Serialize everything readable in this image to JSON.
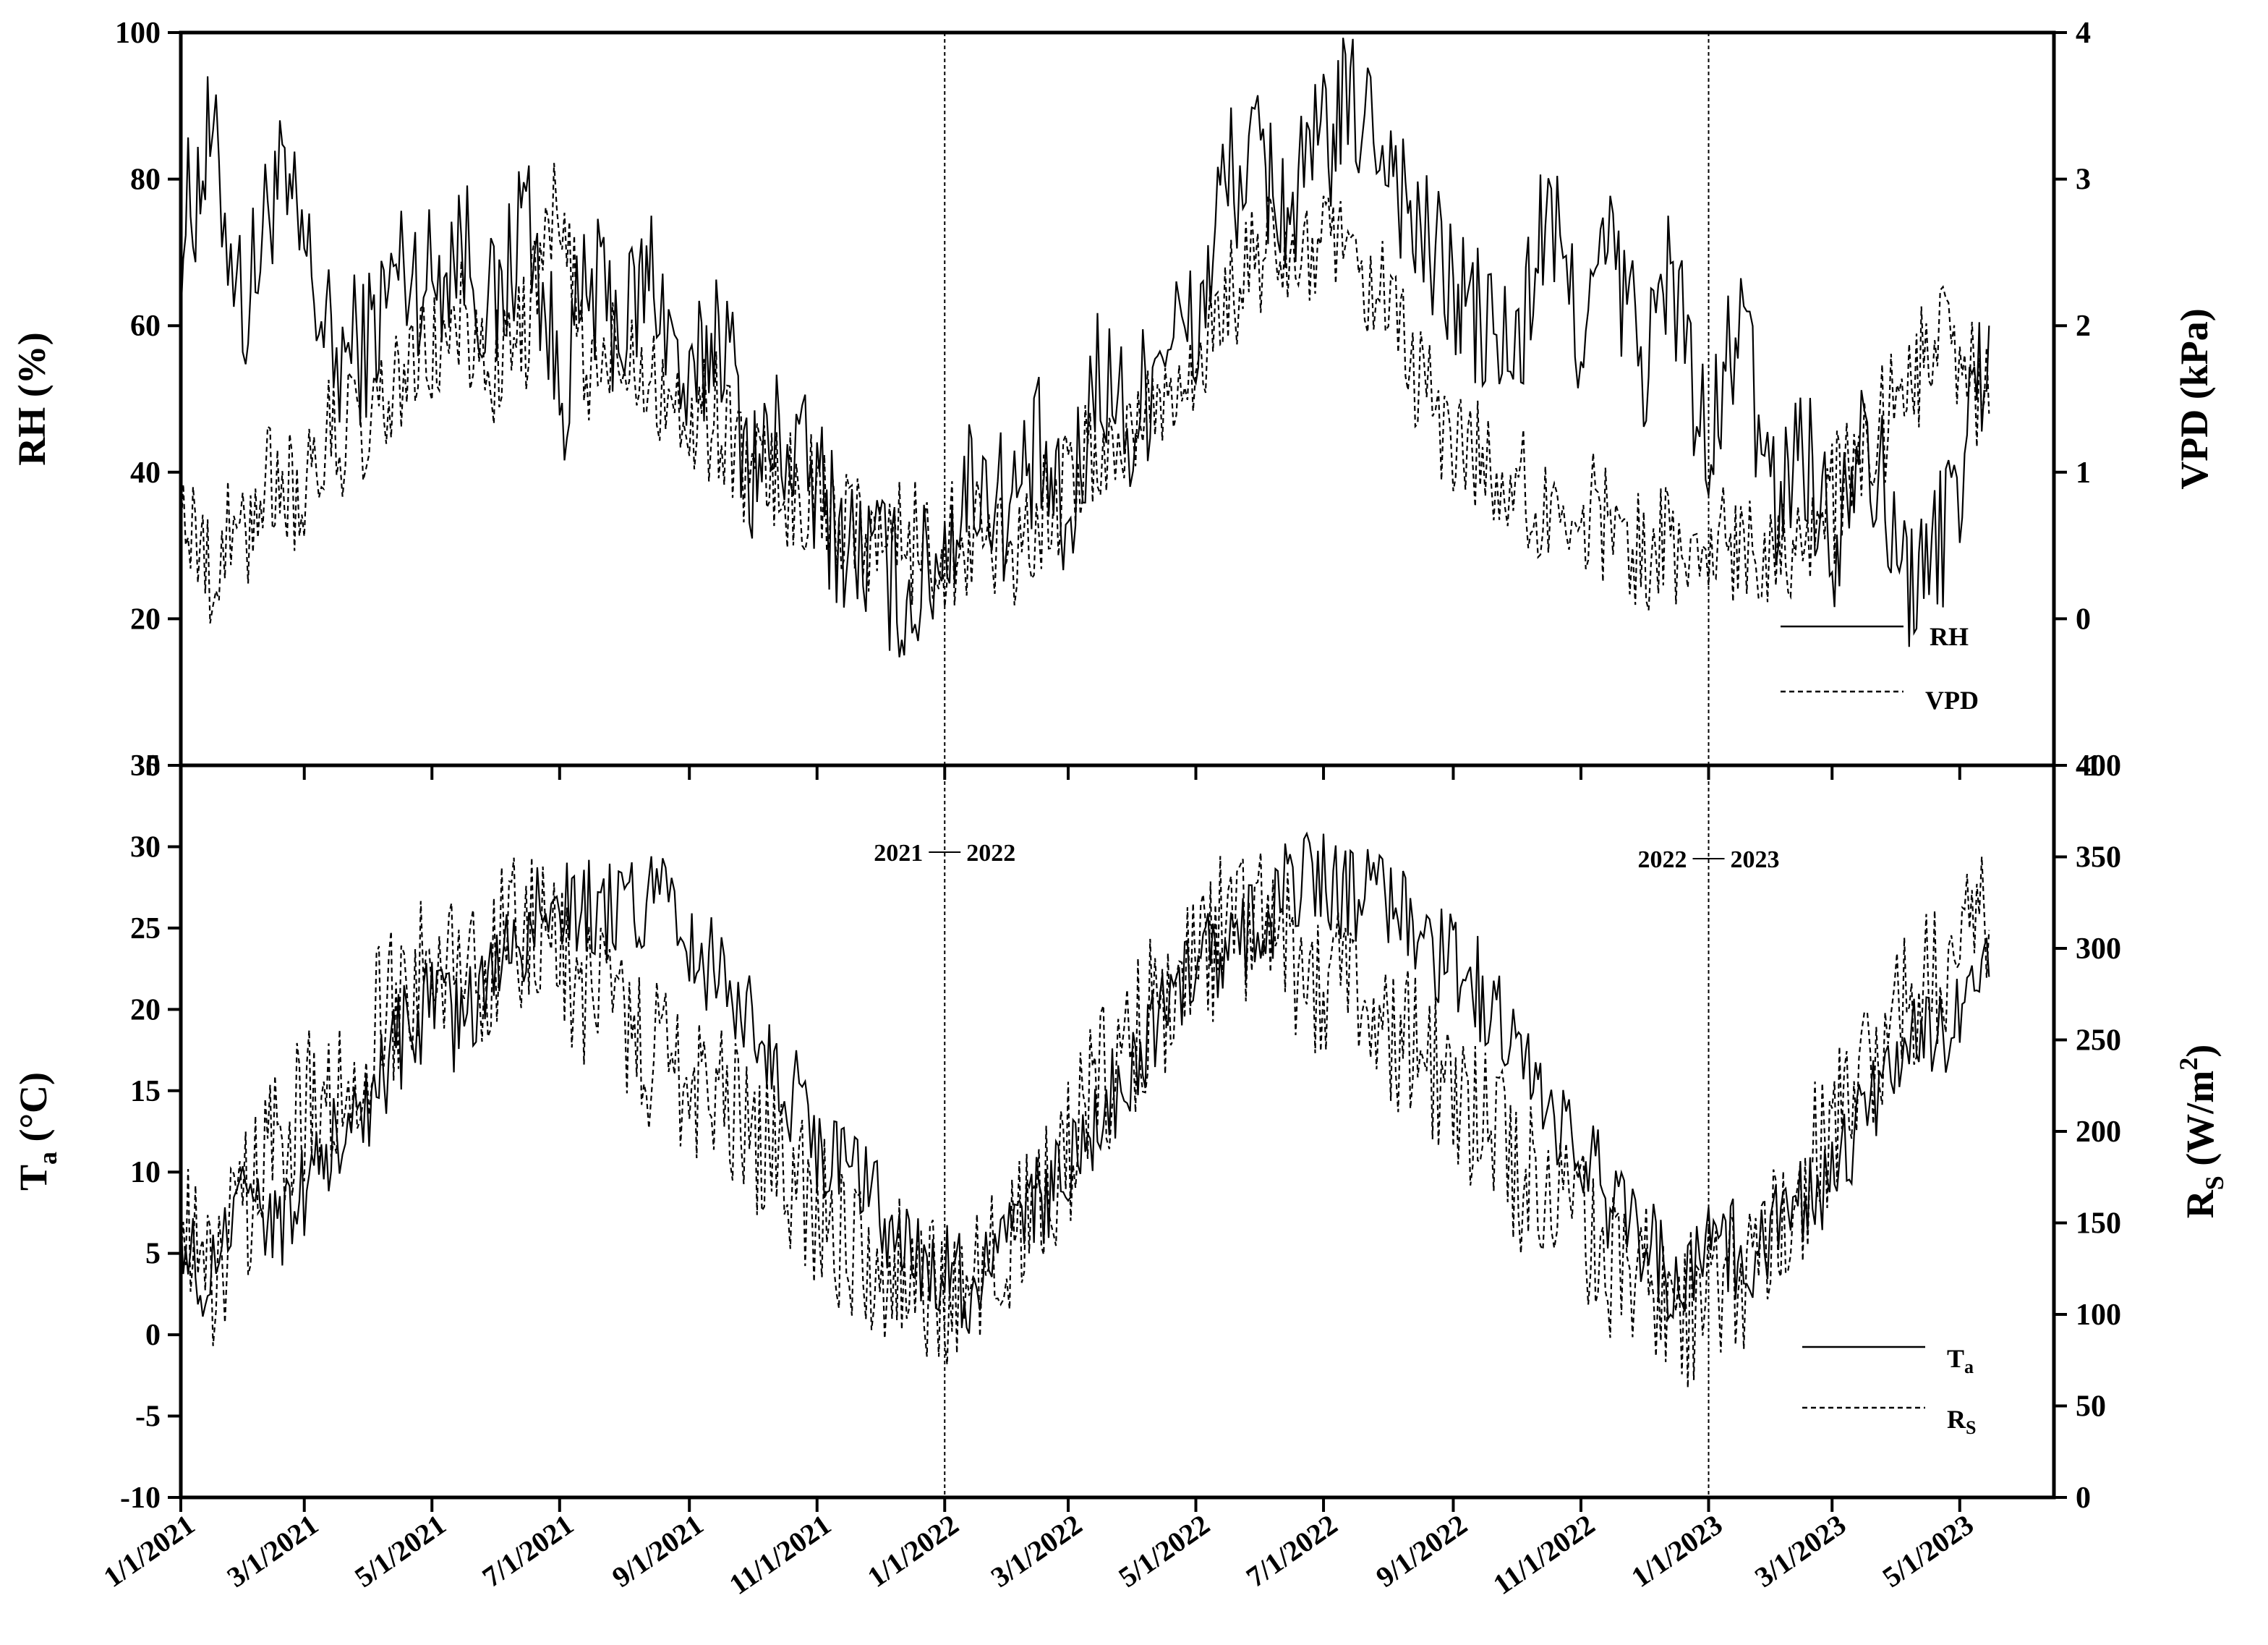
{
  "chart_data": [
    {
      "type": "line",
      "panel": "top",
      "ylabel": "RH (%)",
      "y2label": "VPD (kPa)",
      "ylim": [
        0,
        100
      ],
      "y_ticks": [
        "0",
        "20",
        "40",
        "60",
        "80",
        "100"
      ],
      "y2lim": [
        -1,
        4
      ],
      "y2_ticks": [
        "-1",
        "0",
        "1",
        "2",
        "3",
        "4"
      ],
      "grid": false,
      "legend_position": "lower-right",
      "series": [
        {
          "name": "RH",
          "axis": "left",
          "line_style": "solid",
          "color": "#000000",
          "x": [
            "2021-01-01",
            "2021-01-15",
            "2021-02-01",
            "2021-02-15",
            "2021-03-01",
            "2021-03-15",
            "2021-04-01",
            "2021-04-15",
            "2021-05-01",
            "2021-05-15",
            "2021-06-01",
            "2021-06-15",
            "2021-07-01",
            "2021-07-15",
            "2021-08-01",
            "2021-08-15",
            "2021-09-01",
            "2021-09-15",
            "2021-10-01",
            "2021-10-15",
            "2021-11-01",
            "2021-11-15",
            "2021-12-01",
            "2021-12-15",
            "2022-01-01",
            "2022-01-15",
            "2022-02-01",
            "2022-02-15",
            "2022-03-01",
            "2022-03-15",
            "2022-04-01",
            "2022-04-15",
            "2022-05-01",
            "2022-05-15",
            "2022-06-01",
            "2022-06-15",
            "2022-07-01",
            "2022-07-15",
            "2022-08-01",
            "2022-08-15",
            "2022-09-01",
            "2022-09-15",
            "2022-10-01",
            "2022-10-15",
            "2022-11-01",
            "2022-11-15",
            "2022-12-01",
            "2022-12-15",
            "2023-01-01",
            "2023-01-15",
            "2023-02-01",
            "2023-02-15",
            "2023-03-01",
            "2023-03-15",
            "2023-04-01",
            "2023-04-15",
            "2023-05-01",
            "2023-05-15"
          ],
          "values": [
            72,
            85,
            62,
            80,
            70,
            55,
            58,
            68,
            66,
            72,
            60,
            78,
            50,
            65,
            60,
            68,
            48,
            62,
            40,
            45,
            38,
            30,
            28,
            22,
            30,
            40,
            35,
            42,
            30,
            55,
            45,
            60,
            58,
            80,
            82,
            75,
            85,
            90,
            85,
            72,
            65,
            60,
            55,
            75,
            60,
            70,
            55,
            68,
            40,
            62,
            35,
            45,
            30,
            50,
            28,
            25,
            40,
            60
          ]
        },
        {
          "name": "VPD",
          "axis": "right",
          "line_style": "dashed",
          "color": "#000000",
          "x": [
            "2021-01-01",
            "2021-01-15",
            "2021-02-01",
            "2021-02-15",
            "2021-03-01",
            "2021-03-15",
            "2021-04-01",
            "2021-04-15",
            "2021-05-01",
            "2021-05-15",
            "2021-06-01",
            "2021-06-15",
            "2021-07-01",
            "2021-07-15",
            "2021-08-01",
            "2021-08-15",
            "2021-09-01",
            "2021-09-15",
            "2021-10-01",
            "2021-10-15",
            "2021-11-01",
            "2021-11-15",
            "2021-12-01",
            "2021-12-15",
            "2022-01-01",
            "2022-01-15",
            "2022-02-01",
            "2022-02-15",
            "2022-03-01",
            "2022-03-15",
            "2022-04-01",
            "2022-04-15",
            "2022-05-01",
            "2022-05-15",
            "2022-06-01",
            "2022-06-15",
            "2022-07-01",
            "2022-07-15",
            "2022-08-01",
            "2022-08-15",
            "2022-09-01",
            "2022-09-15",
            "2022-10-01",
            "2022-10-15",
            "2022-11-01",
            "2022-11-15",
            "2022-12-01",
            "2022-12-15",
            "2023-01-01",
            "2023-01-15",
            "2023-02-01",
            "2023-02-15",
            "2023-03-01",
            "2023-03-15",
            "2023-04-01",
            "2023-04-15",
            "2023-05-01",
            "2023-05-15"
          ],
          "values": [
            0.7,
            0.4,
            0.6,
            1.0,
            0.8,
            1.3,
            1.2,
            1.6,
            1.8,
            2.0,
            1.7,
            2.0,
            2.8,
            1.6,
            1.9,
            1.7,
            1.3,
            1.4,
            1.0,
            0.9,
            0.8,
            0.7,
            0.6,
            0.5,
            0.5,
            0.6,
            0.5,
            0.7,
            0.9,
            1.1,
            1.3,
            1.5,
            1.8,
            2.1,
            2.5,
            2.4,
            2.6,
            2.3,
            2.1,
            1.6,
            1.2,
            1.1,
            0.9,
            0.7,
            0.8,
            0.6,
            0.5,
            0.5,
            0.4,
            0.6,
            0.5,
            0.6,
            0.8,
            1.0,
            1.5,
            1.8,
            1.9,
            1.4
          ]
        }
      ]
    },
    {
      "type": "line",
      "panel": "bottom",
      "ylabel": "T",
      "ylabel_sub": "a",
      "ylabel_unit": "(°C)",
      "y2label": "R",
      "y2label_sub": "S",
      "y2label_unit": "(W/m",
      "y2label_sup": "2",
      "y2label_close": ")",
      "ylim": [
        -10,
        35
      ],
      "y_ticks": [
        "-10",
        "-5",
        "0",
        "5",
        "10",
        "15",
        "20",
        "25",
        "30",
        "35"
      ],
      "y2lim": [
        0,
        400
      ],
      "y2_ticks": [
        "0",
        "50",
        "100",
        "150",
        "200",
        "250",
        "300",
        "350",
        "400"
      ],
      "grid": false,
      "legend_position": "lower-right",
      "series": [
        {
          "name": "T",
          "name_sub": "a",
          "axis": "left",
          "line_style": "solid",
          "color": "#000000",
          "x": [
            "2021-01-01",
            "2021-01-15",
            "2021-02-01",
            "2021-02-15",
            "2021-03-01",
            "2021-03-15",
            "2021-04-01",
            "2021-04-15",
            "2021-05-01",
            "2021-05-15",
            "2021-06-01",
            "2021-06-15",
            "2021-07-01",
            "2021-07-15",
            "2021-08-01",
            "2021-08-15",
            "2021-09-01",
            "2021-09-15",
            "2021-10-01",
            "2021-10-15",
            "2021-11-01",
            "2021-11-15",
            "2021-12-01",
            "2021-12-15",
            "2022-01-01",
            "2022-01-15",
            "2022-02-01",
            "2022-02-15",
            "2022-03-01",
            "2022-03-15",
            "2022-04-01",
            "2022-04-15",
            "2022-05-01",
            "2022-05-15",
            "2022-06-01",
            "2022-06-15",
            "2022-07-01",
            "2022-07-15",
            "2022-08-01",
            "2022-08-15",
            "2022-09-01",
            "2022-09-15",
            "2022-10-01",
            "2022-10-15",
            "2022-11-01",
            "2022-11-15",
            "2022-12-01",
            "2022-12-15",
            "2023-01-01",
            "2023-01-15",
            "2023-02-01",
            "2023-02-15",
            "2023-03-01",
            "2023-03-15",
            "2023-04-01",
            "2023-04-15",
            "2023-05-01",
            "2023-05-15"
          ],
          "values": [
            5,
            4,
            8,
            6,
            9,
            12,
            14,
            18,
            20,
            19,
            22,
            25,
            27,
            26,
            26,
            27,
            24,
            22,
            20,
            16,
            12,
            10,
            8,
            5,
            4,
            3,
            5,
            8,
            10,
            13,
            17,
            20,
            22,
            24,
            25,
            28,
            28,
            27,
            27,
            24,
            23,
            21,
            18,
            14,
            12,
            8,
            6,
            3,
            6,
            5,
            6,
            8,
            10,
            13,
            17,
            18,
            19,
            22
          ]
        },
        {
          "name": "R",
          "name_sub": "S",
          "axis": "right",
          "line_style": "dashed",
          "color": "#000000",
          "x": [
            "2021-01-01",
            "2021-01-15",
            "2021-02-01",
            "2021-02-15",
            "2021-03-01",
            "2021-03-15",
            "2021-04-01",
            "2021-04-15",
            "2021-05-01",
            "2021-05-15",
            "2021-06-01",
            "2021-06-15",
            "2021-07-01",
            "2021-07-15",
            "2021-08-01",
            "2021-08-15",
            "2021-09-01",
            "2021-09-15",
            "2021-10-01",
            "2021-10-15",
            "2021-11-01",
            "2021-11-15",
            "2021-12-01",
            "2021-12-15",
            "2022-01-01",
            "2022-01-15",
            "2022-02-01",
            "2022-02-15",
            "2022-03-01",
            "2022-03-15",
            "2022-04-01",
            "2022-04-15",
            "2022-05-01",
            "2022-05-15",
            "2022-06-01",
            "2022-06-15",
            "2022-07-01",
            "2022-07-15",
            "2022-08-01",
            "2022-08-15",
            "2022-09-01",
            "2022-09-15",
            "2022-10-01",
            "2022-10-15",
            "2022-11-01",
            "2022-11-15",
            "2022-12-01",
            "2022-12-15",
            "2023-01-01",
            "2023-01-15",
            "2023-02-01",
            "2023-02-15",
            "2023-03-01",
            "2023-03-15",
            "2023-04-01",
            "2023-04-15",
            "2023-05-01",
            "2023-05-15"
          ],
          "values": [
            140,
            120,
            160,
            190,
            210,
            230,
            250,
            270,
            290,
            280,
            300,
            310,
            290,
            270,
            260,
            240,
            230,
            220,
            200,
            180,
            160,
            140,
            130,
            120,
            110,
            120,
            140,
            160,
            190,
            220,
            250,
            270,
            290,
            310,
            320,
            300,
            280,
            270,
            260,
            240,
            220,
            200,
            180,
            160,
            150,
            130,
            120,
            100,
            110,
            120,
            140,
            170,
            200,
            230,
            260,
            280,
            300,
            310
          ]
        }
      ],
      "year_markers": [
        {
          "left": "2021",
          "right": "2022",
          "date": "2022-01-01"
        },
        {
          "left": "2022",
          "right": "2023",
          "date": "2023-01-01"
        }
      ]
    }
  ],
  "x_axis": {
    "xlim": [
      "2021-01-01",
      "2023-06-15"
    ],
    "ticks": [
      {
        "date": "2021-01-01",
        "label": "1/1/2021"
      },
      {
        "date": "2021-03-01",
        "label": "3/1/2021"
      },
      {
        "date": "2021-05-01",
        "label": "5/1/2021"
      },
      {
        "date": "2021-07-01",
        "label": "7/1/2021"
      },
      {
        "date": "2021-09-01",
        "label": "9/1/2021"
      },
      {
        "date": "2021-11-01",
        "label": "11/1/2021"
      },
      {
        "date": "2022-01-01",
        "label": "1/1/2022"
      },
      {
        "date": "2022-03-01",
        "label": "3/1/2022"
      },
      {
        "date": "2022-05-01",
        "label": "5/1/2022"
      },
      {
        "date": "2022-07-01",
        "label": "7/1/2022"
      },
      {
        "date": "2022-09-01",
        "label": "9/1/2022"
      },
      {
        "date": "2022-11-01",
        "label": "11/1/2022"
      },
      {
        "date": "2023-01-01",
        "label": "1/1/2023"
      },
      {
        "date": "2023-03-01",
        "label": "3/1/2023"
      },
      {
        "date": "2023-05-01",
        "label": "5/1/2023"
      }
    ]
  }
}
